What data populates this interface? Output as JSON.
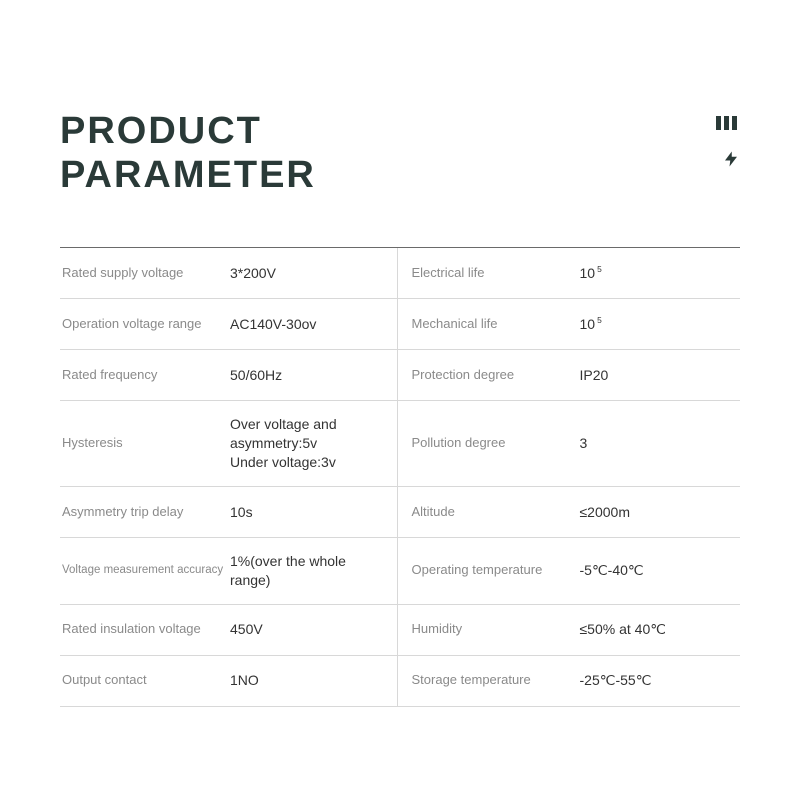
{
  "title_line1": "PRODUCT",
  "title_line2": "PARAMETER",
  "rows": [
    {
      "l_label": "Rated supply voltage",
      "l_value": "3*200V",
      "r_label": "Electrical life",
      "r_value": "10",
      "r_sup": "5"
    },
    {
      "l_label": "Operation voltage range",
      "l_value": "AC140V-30ov",
      "r_label": "Mechanical life",
      "r_value": "10",
      "r_sup": "5"
    },
    {
      "l_label": "Rated frequency",
      "l_value": "50/60Hz",
      "r_label": "Protection degree",
      "r_value": "IP20"
    },
    {
      "l_label": "Hysteresis",
      "l_value": "Over voltage and asymmetry:5v\nUnder voltage:3v",
      "r_label": "Pollution degree",
      "r_value": "3"
    },
    {
      "l_label": "Asymmetry trip delay",
      "l_value": "10s",
      "r_label": "Altitude",
      "r_value": "≤2000m"
    },
    {
      "l_label": "Voltage measurement accuracy",
      "l_label_small": true,
      "l_value": "1%(over the whole range)",
      "r_label": "Operating temperature",
      "r_value": "-5℃-40℃"
    },
    {
      "l_label": "Rated insulation voltage",
      "l_value": "450V",
      "r_label": "Humidity",
      "r_value": "≤50% at 40℃"
    },
    {
      "l_label": "Output contact",
      "l_value": "1NO",
      "r_label": "Storage temperature",
      "r_value": "-25℃-55℃"
    }
  ],
  "colors": {
    "text_primary": "#2a3a38",
    "text_label": "#8a8a8a",
    "text_value": "#333333",
    "border_top": "#6a6a6a",
    "border_row": "#d8d8d8",
    "background": "#ffffff"
  },
  "typography": {
    "title_fontsize": 38,
    "title_weight": 800,
    "label_fontsize": 13,
    "value_fontsize": 14
  }
}
